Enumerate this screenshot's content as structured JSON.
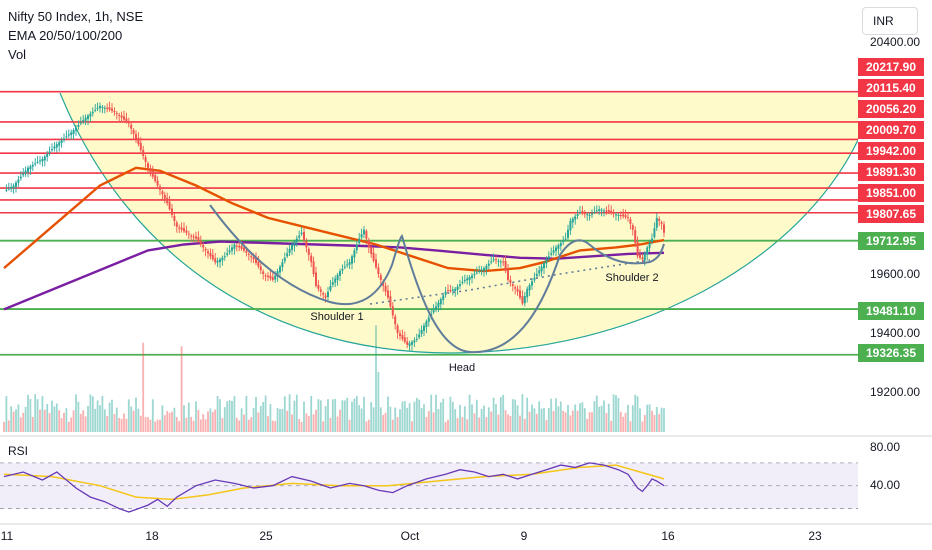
{
  "header": {
    "title": "Nifty 50 Index, 1h, NSE",
    "indicator": "EMA 20/50/100/200",
    "volume_label": "Vol",
    "currency": "INR"
  },
  "colors": {
    "resistance": "#f23645",
    "support": "#4caf50",
    "ema_fast": "#e65100",
    "ema_slow": "#7b1fa2",
    "bowl_fill": "#fff59d",
    "bowl_stroke": "#26a69a",
    "pattern": "#607d9b",
    "up": "#26a69a",
    "down": "#ef5350",
    "rsi": "#673ab7",
    "rsi_ma": "#f5c518"
  },
  "chart_data": {
    "type": "candlestick",
    "price_axis": {
      "range": [
        19100,
        20480
      ],
      "ticks": [
        "20400.00",
        "19600.00",
        "19400.00",
        "19200.00"
      ]
    },
    "x_ticks": [
      "11",
      "18",
      "25",
      "Oct",
      "9",
      "16",
      "23"
    ],
    "resistance_levels": [
      {
        "value": 20217.9,
        "label": "20217.90"
      },
      {
        "value": 20115.4,
        "label": "20115.40"
      },
      {
        "value": 20056.2,
        "label": "20056.20"
      },
      {
        "value": 20009.7,
        "label": "20009.70"
      },
      {
        "value": 19942.0,
        "label": "19942.00"
      },
      {
        "value": 19891.3,
        "label": "19891.30"
      },
      {
        "value": 19851.0,
        "label": "19851.00"
      },
      {
        "value": 19807.65,
        "label": "19807.65"
      }
    ],
    "support_levels": [
      {
        "value": 19712.95,
        "label": "19712.95"
      },
      {
        "value": 19481.1,
        "label": "19481.10"
      },
      {
        "value": 19326.35,
        "label": "19326.35"
      }
    ],
    "annotations": [
      "Shoulder 1",
      "Head",
      "Shoulder 2"
    ],
    "price_path": [
      [
        0,
        19880
      ],
      [
        4,
        19900
      ],
      [
        10,
        19960
      ],
      [
        16,
        19990
      ],
      [
        22,
        20040
      ],
      [
        28,
        20080
      ],
      [
        34,
        20130
      ],
      [
        40,
        20170
      ],
      [
        46,
        20150
      ],
      [
        52,
        20110
      ],
      [
        56,
        20040
      ],
      [
        60,
        19960
      ],
      [
        64,
        19900
      ],
      [
        68,
        19840
      ],
      [
        70,
        19800
      ],
      [
        72,
        19760
      ],
      [
        76,
        19740
      ],
      [
        80,
        19720
      ],
      [
        84,
        19680
      ],
      [
        88,
        19640
      ],
      [
        92,
        19660
      ],
      [
        96,
        19700
      ],
      [
        100,
        19680
      ],
      [
        104,
        19650
      ],
      [
        108,
        19600
      ],
      [
        112,
        19580
      ],
      [
        116,
        19640
      ],
      [
        120,
        19700
      ],
      [
        124,
        19740
      ],
      [
        126,
        19690
      ],
      [
        128,
        19640
      ],
      [
        130,
        19560
      ],
      [
        134,
        19520
      ],
      [
        136,
        19560
      ],
      [
        140,
        19610
      ],
      [
        144,
        19640
      ],
      [
        148,
        19720
      ],
      [
        150,
        19750
      ],
      [
        152,
        19690
      ],
      [
        156,
        19600
      ],
      [
        160,
        19520
      ],
      [
        162,
        19460
      ],
      [
        164,
        19400
      ],
      [
        166,
        19380
      ],
      [
        168,
        19360
      ],
      [
        172,
        19380
      ],
      [
        176,
        19440
      ],
      [
        180,
        19490
      ],
      [
        184,
        19540
      ],
      [
        188,
        19550
      ],
      [
        192,
        19580
      ],
      [
        196,
        19600
      ],
      [
        200,
        19620
      ],
      [
        204,
        19650
      ],
      [
        208,
        19640
      ],
      [
        210,
        19580
      ],
      [
        212,
        19560
      ],
      [
        214,
        19540
      ],
      [
        216,
        19500
      ],
      [
        218,
        19550
      ],
      [
        222,
        19600
      ],
      [
        226,
        19650
      ],
      [
        230,
        19690
      ],
      [
        234,
        19720
      ],
      [
        236,
        19780
      ],
      [
        240,
        19810
      ],
      [
        244,
        19800
      ],
      [
        248,
        19820
      ],
      [
        252,
        19810
      ],
      [
        256,
        19800
      ],
      [
        260,
        19790
      ],
      [
        262,
        19750
      ],
      [
        264,
        19660
      ],
      [
        266,
        19650
      ],
      [
        268,
        19690
      ],
      [
        270,
        19720
      ],
      [
        272,
        19790
      ],
      [
        274,
        19770
      ],
      [
        275,
        19740
      ]
    ],
    "ema_fast": [
      [
        0,
        19620
      ],
      [
        20,
        19760
      ],
      [
        40,
        19900
      ],
      [
        55,
        19960
      ],
      [
        65,
        19950
      ],
      [
        80,
        19900
      ],
      [
        95,
        19840
      ],
      [
        110,
        19790
      ],
      [
        125,
        19760
      ],
      [
        140,
        19730
      ],
      [
        155,
        19700
      ],
      [
        170,
        19660
      ],
      [
        185,
        19620
      ],
      [
        200,
        19610
      ],
      [
        215,
        19620
      ],
      [
        225,
        19640
      ],
      [
        240,
        19680
      ],
      [
        255,
        19690
      ],
      [
        265,
        19700
      ],
      [
        275,
        19715
      ]
    ],
    "ema_slow": [
      [
        0,
        19480
      ],
      [
        15,
        19530
      ],
      [
        30,
        19580
      ],
      [
        45,
        19630
      ],
      [
        60,
        19680
      ],
      [
        75,
        19700
      ],
      [
        90,
        19710
      ],
      [
        110,
        19705
      ],
      [
        130,
        19700
      ],
      [
        150,
        19695
      ],
      [
        165,
        19690
      ],
      [
        180,
        19680
      ],
      [
        200,
        19665
      ],
      [
        215,
        19655
      ],
      [
        230,
        19652
      ],
      [
        245,
        19660
      ],
      [
        260,
        19668
      ],
      [
        275,
        19672
      ]
    ],
    "rsi": {
      "ticks": [
        "80.00",
        "40.00"
      ],
      "range": [
        20,
        90
      ],
      "band": [
        30,
        70
      ],
      "values": [
        [
          0,
          58
        ],
        [
          8,
          62
        ],
        [
          16,
          55
        ],
        [
          22,
          62
        ],
        [
          30,
          48
        ],
        [
          36,
          40
        ],
        [
          42,
          36
        ],
        [
          48,
          30
        ],
        [
          52,
          27
        ],
        [
          56,
          30
        ],
        [
          60,
          33
        ],
        [
          64,
          38
        ],
        [
          68,
          32
        ],
        [
          72,
          40
        ],
        [
          76,
          45
        ],
        [
          80,
          50
        ],
        [
          88,
          55
        ],
        [
          96,
          52
        ],
        [
          104,
          48
        ],
        [
          112,
          50
        ],
        [
          120,
          58
        ],
        [
          128,
          54
        ],
        [
          136,
          48
        ],
        [
          144,
          52
        ],
        [
          150,
          50
        ],
        [
          156,
          46
        ],
        [
          162,
          44
        ],
        [
          168,
          50
        ],
        [
          176,
          56
        ],
        [
          184,
          60
        ],
        [
          190,
          64
        ],
        [
          196,
          62
        ],
        [
          202,
          58
        ],
        [
          208,
          60
        ],
        [
          214,
          56
        ],
        [
          220,
          60
        ],
        [
          226,
          64
        ],
        [
          232,
          68
        ],
        [
          238,
          66
        ],
        [
          244,
          70
        ],
        [
          250,
          68
        ],
        [
          256,
          64
        ],
        [
          260,
          60
        ],
        [
          264,
          48
        ],
        [
          266,
          45
        ],
        [
          268,
          50
        ],
        [
          270,
          56
        ],
        [
          272,
          54
        ],
        [
          275,
          50
        ]
      ],
      "ma": [
        [
          0,
          60
        ],
        [
          20,
          58
        ],
        [
          40,
          50
        ],
        [
          55,
          40
        ],
        [
          70,
          38
        ],
        [
          85,
          42
        ],
        [
          100,
          48
        ],
        [
          120,
          52
        ],
        [
          140,
          50
        ],
        [
          160,
          50
        ],
        [
          180,
          54
        ],
        [
          200,
          58
        ],
        [
          220,
          60
        ],
        [
          240,
          66
        ],
        [
          255,
          68
        ],
        [
          265,
          62
        ],
        [
          275,
          56
        ]
      ]
    }
  }
}
